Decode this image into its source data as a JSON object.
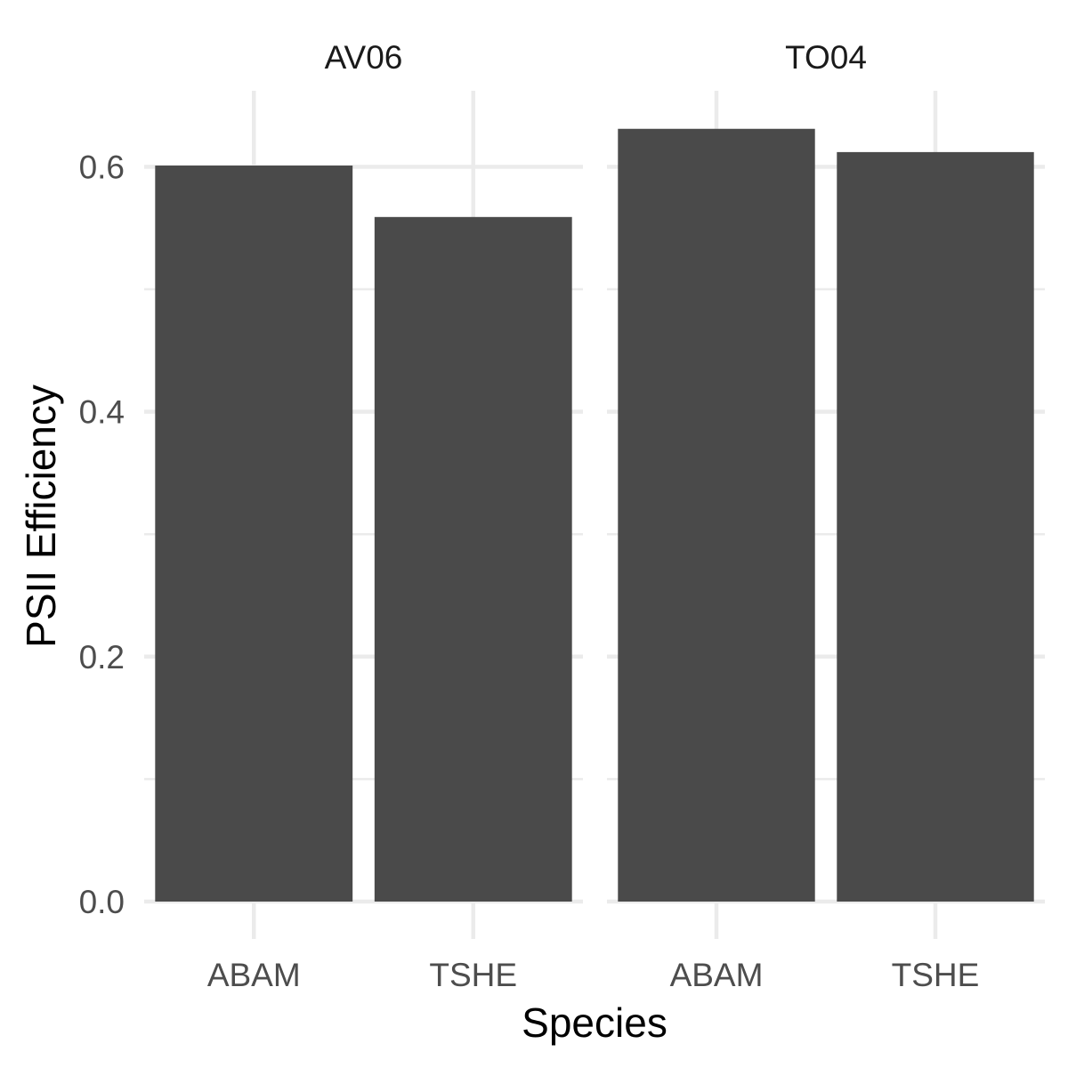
{
  "chart_data": {
    "type": "bar",
    "xlabel": "Species",
    "ylabel": "PSII Efficiency",
    "ylim": [
      0,
      0.66
    ],
    "yticks": [
      "0.0",
      "0.2",
      "0.4",
      "0.6"
    ],
    "ytick_values": [
      0,
      0.2,
      0.4,
      0.6
    ],
    "grid": true,
    "bar_color": "#4a4a4a",
    "grid_color": "#ebebeb",
    "panels": [
      {
        "facet": "AV06",
        "categories": [
          "ABAM",
          "TSHE"
        ],
        "values": [
          0.601,
          0.559
        ]
      },
      {
        "facet": "TO04",
        "categories": [
          "ABAM",
          "TSHE"
        ],
        "values": [
          0.631,
          0.612
        ]
      }
    ]
  }
}
